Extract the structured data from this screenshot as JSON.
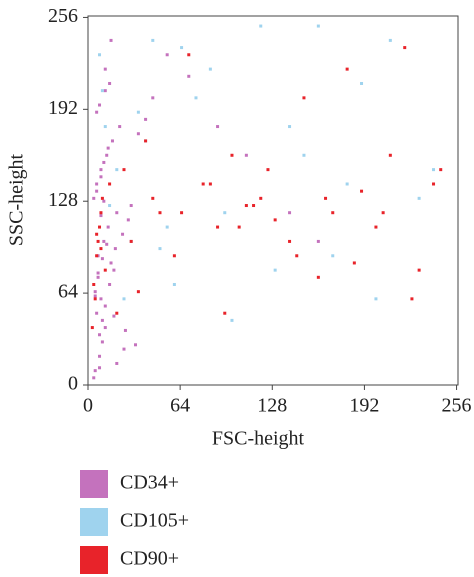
{
  "chart_data": {
    "type": "scatter",
    "x_label": "FSC-height",
    "y_label": "SSC-height",
    "xlim": [
      0,
      257
    ],
    "ylim": [
      0,
      257
    ],
    "xticks": [
      0,
      64,
      128,
      192,
      256
    ],
    "yticks": [
      0,
      64,
      128,
      192,
      256
    ],
    "legend": "bottom-left",
    "series": [
      {
        "name": "CD34+",
        "color": "#c472bd",
        "x": [
          5,
          8,
          10,
          12,
          6,
          9,
          15,
          18,
          7,
          11,
          14,
          20,
          4,
          6,
          9,
          13,
          17,
          22,
          25,
          8,
          10,
          12,
          5,
          7,
          16,
          19,
          24,
          28,
          30,
          6,
          9,
          11,
          14,
          35,
          40,
          8,
          12,
          15,
          20,
          5,
          7,
          10,
          13,
          18,
          26,
          33,
          9,
          11,
          6,
          45,
          55,
          70,
          90,
          110,
          140,
          160,
          4,
          8,
          12,
          16
        ],
        "values": [
          10,
          20,
          30,
          40,
          50,
          60,
          70,
          80,
          90,
          100,
          110,
          120,
          130,
          140,
          150,
          160,
          170,
          180,
          25,
          35,
          45,
          55,
          65,
          75,
          85,
          95,
          105,
          115,
          125,
          135,
          145,
          155,
          165,
          175,
          185,
          195,
          205,
          210,
          15,
          62,
          78,
          88,
          98,
          48,
          38,
          28,
          118,
          128,
          190,
          200,
          230,
          215,
          180,
          160,
          120,
          100,
          5,
          12,
          220,
          240
        ]
      },
      {
        "name": "CD105+",
        "color": "#9fd3ee",
        "x": [
          8,
          12,
          20,
          30,
          45,
          60,
          75,
          95,
          120,
          150,
          170,
          190,
          210,
          230,
          25,
          40,
          55,
          85,
          100,
          130,
          160,
          180,
          10,
          15,
          35,
          50,
          65,
          140,
          200,
          240
        ],
        "values": [
          230,
          180,
          150,
          100,
          240,
          70,
          200,
          120,
          250,
          160,
          90,
          210,
          240,
          130,
          60,
          170,
          110,
          220,
          45,
          80,
          250,
          140,
          205,
          125,
          190,
          95,
          235,
          180,
          60,
          150
        ]
      },
      {
        "name": "CD90+",
        "color": "#e8232a",
        "x": [
          4,
          6,
          8,
          10,
          5,
          7,
          9,
          12,
          15,
          20,
          25,
          30,
          40,
          50,
          60,
          70,
          80,
          90,
          100,
          110,
          120,
          130,
          140,
          150,
          160,
          170,
          180,
          190,
          200,
          210,
          220,
          230,
          245,
          3,
          6,
          9,
          35,
          45,
          65,
          85,
          105,
          125,
          145,
          165,
          185,
          205,
          225,
          240,
          115,
          95
        ],
        "values": [
          70,
          90,
          110,
          130,
          60,
          100,
          120,
          80,
          140,
          50,
          150,
          100,
          170,
          120,
          90,
          230,
          140,
          110,
          160,
          125,
          130,
          115,
          100,
          200,
          75,
          120,
          220,
          135,
          110,
          160,
          235,
          80,
          150,
          40,
          105,
          95,
          65,
          130,
          120,
          140,
          110,
          150,
          90,
          130,
          85,
          120,
          60,
          140,
          125,
          50
        ]
      }
    ]
  }
}
